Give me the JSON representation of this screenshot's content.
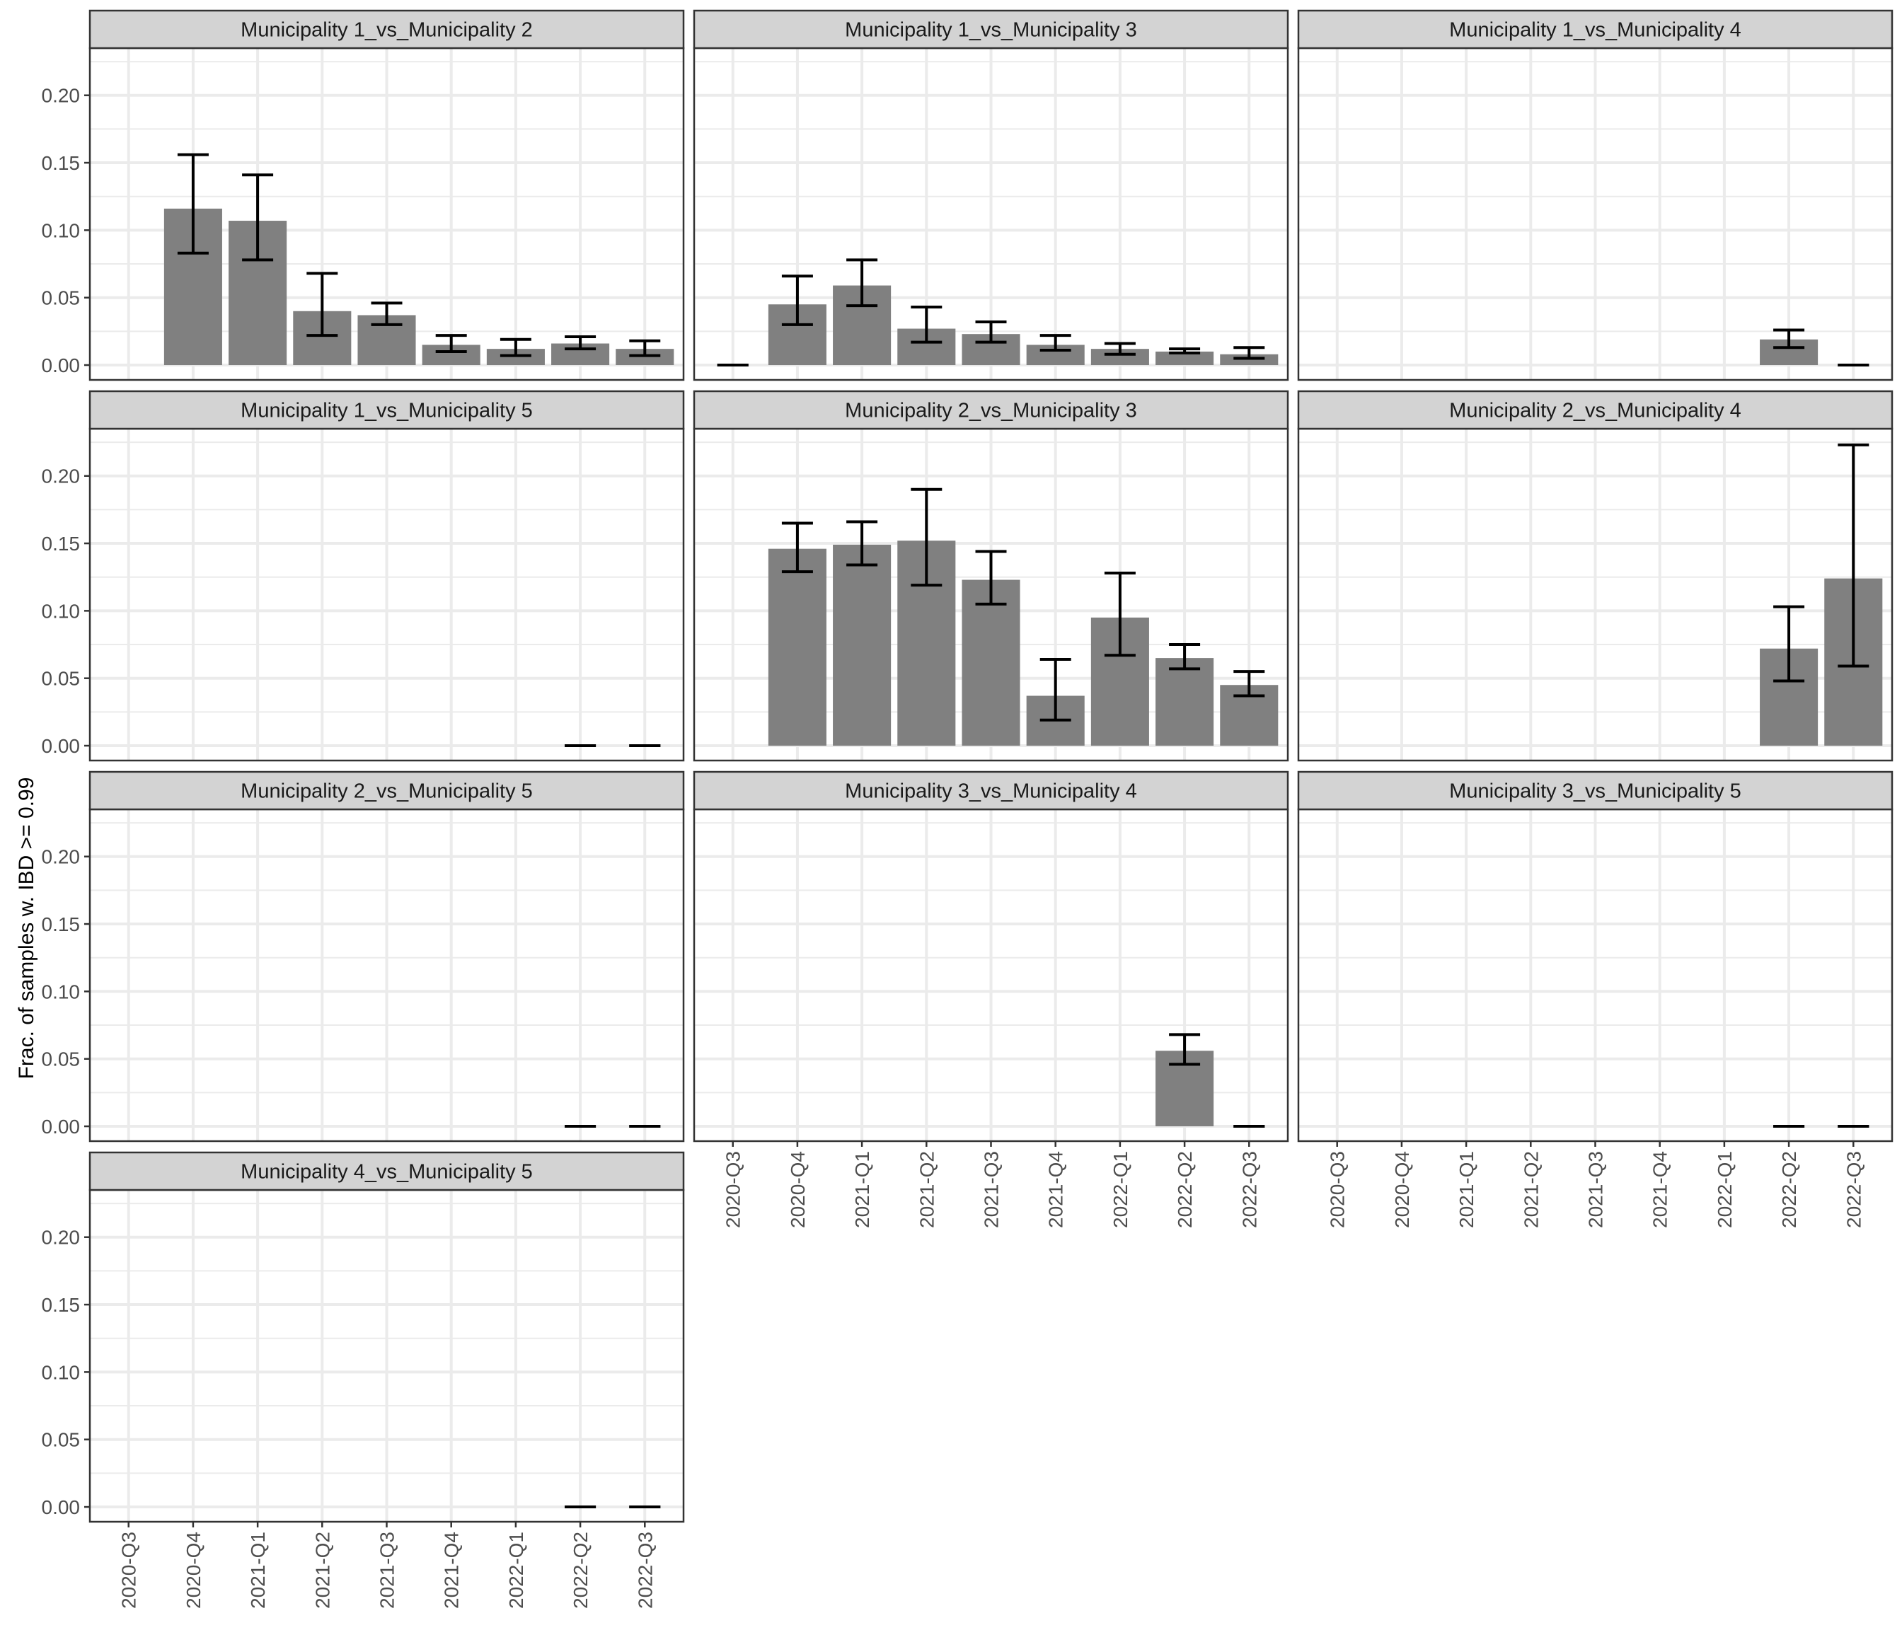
{
  "chart_data": {
    "type": "bar",
    "layout": "facet_wrap",
    "facet_ncol": 3,
    "ylabel": "Frac. of samples w. IBD >= 0.99",
    "xlabel": "",
    "ylim": [
      -0.011,
      0.235
    ],
    "yticks": [
      0.0,
      0.05,
      0.1,
      0.15,
      0.2
    ],
    "ytick_labels": [
      "0.00",
      "0.05",
      "0.10",
      "0.15",
      "0.20"
    ],
    "grid": true,
    "categories": [
      "2020-Q3",
      "2020-Q4",
      "2021-Q1",
      "2021-Q2",
      "2021-Q3",
      "2021-Q4",
      "2022-Q1",
      "2022-Q2",
      "2022-Q3"
    ],
    "bar_color": "#808080",
    "errorbar_color": "#000000",
    "strip_fill": "#d3d3d3",
    "panels": [
      {
        "title": "Municipality 1_vs_Municipality 2",
        "values": [
          null,
          0.116,
          0.107,
          0.04,
          0.037,
          0.015,
          0.012,
          0.016,
          0.012
        ],
        "lower": [
          null,
          0.083,
          0.078,
          0.022,
          0.03,
          0.01,
          0.007,
          0.012,
          0.007
        ],
        "upper": [
          null,
          0.156,
          0.141,
          0.068,
          0.046,
          0.022,
          0.019,
          0.021,
          0.018
        ]
      },
      {
        "title": "Municipality 1_vs_Municipality 3",
        "values": [
          0.0,
          0.045,
          0.059,
          0.027,
          0.023,
          0.015,
          0.012,
          0.01,
          0.008
        ],
        "lower": [
          0.0,
          0.03,
          0.044,
          0.017,
          0.017,
          0.011,
          0.008,
          0.009,
          0.005
        ],
        "upper": [
          0.0,
          0.066,
          0.078,
          0.043,
          0.032,
          0.022,
          0.016,
          0.012,
          0.013
        ]
      },
      {
        "title": "Municipality 1_vs_Municipality 4",
        "values": [
          null,
          null,
          null,
          null,
          null,
          null,
          null,
          0.019,
          0.0
        ],
        "lower": [
          null,
          null,
          null,
          null,
          null,
          null,
          null,
          0.013,
          0.0
        ],
        "upper": [
          null,
          null,
          null,
          null,
          null,
          null,
          null,
          0.026,
          0.0
        ]
      },
      {
        "title": "Municipality 1_vs_Municipality 5",
        "values": [
          null,
          null,
          null,
          null,
          null,
          null,
          null,
          0.0,
          0.0
        ],
        "lower": [
          null,
          null,
          null,
          null,
          null,
          null,
          null,
          0.0,
          0.0
        ],
        "upper": [
          null,
          null,
          null,
          null,
          null,
          null,
          null,
          0.0,
          0.0
        ]
      },
      {
        "title": "Municipality 2_vs_Municipality 3",
        "values": [
          null,
          0.146,
          0.149,
          0.152,
          0.123,
          0.037,
          0.095,
          0.065,
          0.045
        ],
        "lower": [
          null,
          0.129,
          0.134,
          0.119,
          0.105,
          0.019,
          0.067,
          0.057,
          0.037
        ],
        "upper": [
          null,
          0.165,
          0.166,
          0.19,
          0.144,
          0.064,
          0.128,
          0.075,
          0.055
        ]
      },
      {
        "title": "Municipality 2_vs_Municipality 4",
        "values": [
          null,
          null,
          null,
          null,
          null,
          null,
          null,
          0.072,
          0.124
        ],
        "lower": [
          null,
          null,
          null,
          null,
          null,
          null,
          null,
          0.048,
          0.059
        ],
        "upper": [
          null,
          null,
          null,
          null,
          null,
          null,
          null,
          0.103,
          0.223
        ]
      },
      {
        "title": "Municipality 2_vs_Municipality 5",
        "values": [
          null,
          null,
          null,
          null,
          null,
          null,
          null,
          0.0,
          0.0
        ],
        "lower": [
          null,
          null,
          null,
          null,
          null,
          null,
          null,
          0.0,
          0.0
        ],
        "upper": [
          null,
          null,
          null,
          null,
          null,
          null,
          null,
          0.0,
          0.0
        ]
      },
      {
        "title": "Municipality 3_vs_Municipality 4",
        "values": [
          null,
          null,
          null,
          null,
          null,
          null,
          null,
          0.056,
          0.0
        ],
        "lower": [
          null,
          null,
          null,
          null,
          null,
          null,
          null,
          0.046,
          0.0
        ],
        "upper": [
          null,
          null,
          null,
          null,
          null,
          null,
          null,
          0.068,
          0.0
        ]
      },
      {
        "title": "Municipality 3_vs_Municipality 5",
        "values": [
          null,
          null,
          null,
          null,
          null,
          null,
          null,
          0.0,
          0.0
        ],
        "lower": [
          null,
          null,
          null,
          null,
          null,
          null,
          null,
          0.0,
          0.0
        ],
        "upper": [
          null,
          null,
          null,
          null,
          null,
          null,
          null,
          0.0,
          0.0
        ]
      },
      {
        "title": "Municipality 4_vs_Municipality 5",
        "values": [
          null,
          null,
          null,
          null,
          null,
          null,
          null,
          0.0,
          0.0
        ],
        "lower": [
          null,
          null,
          null,
          null,
          null,
          null,
          null,
          0.0,
          0.0
        ],
        "upper": [
          null,
          null,
          null,
          null,
          null,
          null,
          null,
          0.0,
          0.0
        ]
      }
    ]
  }
}
